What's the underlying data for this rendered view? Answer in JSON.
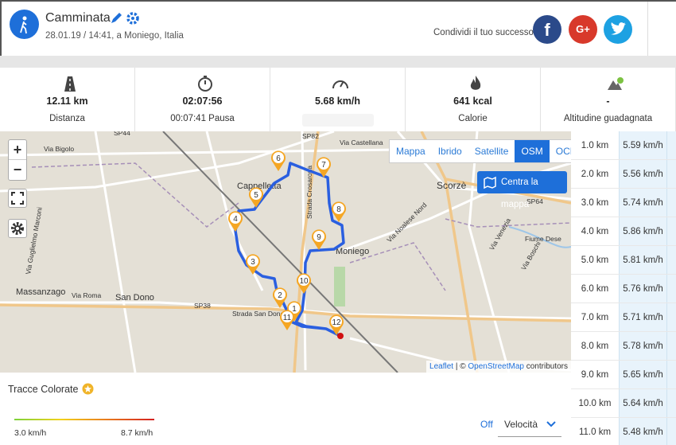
{
  "header": {
    "title": "Camminata",
    "subtitle": "28.01.19 / 14:41, a Moniego, Italia",
    "share": "Condividi il tuo successo",
    "social": [
      "f",
      "G+"
    ]
  },
  "stats": [
    {
      "value": "12.11 km",
      "label": "Distanza"
    },
    {
      "value": "02:07:56",
      "label": "00:07:41 Pausa"
    },
    {
      "value": "5.68 km/h",
      "label": ""
    },
    {
      "value": "641 kcal",
      "label": "Calorie"
    },
    {
      "value": "-",
      "label": "Altitudine guadagnata"
    }
  ],
  "map": {
    "zoom": [
      "+",
      "−"
    ],
    "layers": [
      "Mappa",
      "Ibrido",
      "Satellite",
      "OSM",
      "OCM"
    ],
    "active_layer": "OSM",
    "center_button": "Centra la mappa",
    "attribution": {
      "leaflet": "Leaflet",
      "sep": " | © ",
      "osm": "OpenStreetMap",
      "rest": " contributors"
    },
    "places": [
      "Massanzago",
      "San Dono",
      "Scorzè",
      "Moniego",
      "Cappelletta",
      "SP44",
      "SP82",
      "SP38",
      "SP64",
      "Via Castellana",
      "Strada Crosarona",
      "Via Bigolo",
      "Via Roma",
      "Fiume Dese",
      "Via Venezia",
      "Via Noalese Nord",
      "Strada San Dono",
      "Via Boschi",
      "Via Guglielmo Marconi"
    ],
    "markers": [
      "1",
      "2",
      "3",
      "4",
      "5",
      "6",
      "7",
      "8",
      "9",
      "10",
      "11",
      "12"
    ]
  },
  "splits": [
    [
      "1.0 km",
      "5.59 km/h"
    ],
    [
      "2.0 km",
      "5.56 km/h"
    ],
    [
      "3.0 km",
      "5.74 km/h"
    ],
    [
      "4.0 km",
      "5.86 km/h"
    ],
    [
      "5.0 km",
      "5.81 km/h"
    ],
    [
      "6.0 km",
      "5.76 km/h"
    ],
    [
      "7.0 km",
      "5.71 km/h"
    ],
    [
      "8.0 km",
      "5.78 km/h"
    ],
    [
      "9.0 km",
      "5.65 km/h"
    ],
    [
      "10.0 km",
      "5.64 km/h"
    ],
    [
      "11.0 km",
      "5.48 km/h"
    ]
  ],
  "colored_tracks": {
    "title": "Tracce Colorate",
    "min": "3.0 km/h",
    "max": "8.7 km/h",
    "off": "Off",
    "metric": "Velocità"
  }
}
